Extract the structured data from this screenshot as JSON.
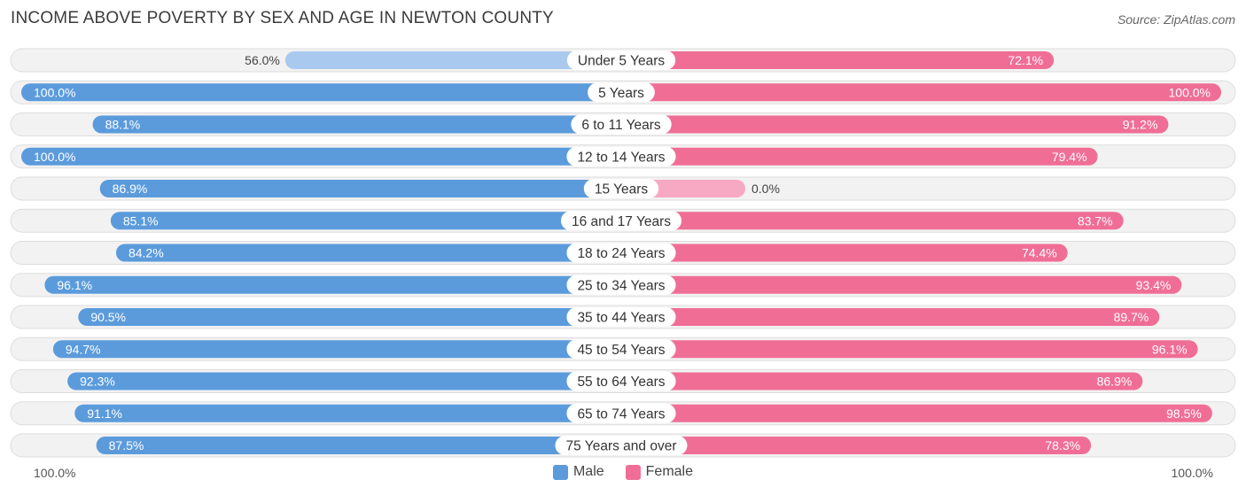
{
  "header": {
    "title": "INCOME ABOVE POVERTY BY SEX AND AGE IN NEWTON COUNTY",
    "source": "Source: ZipAtlas.com"
  },
  "legend": {
    "male_label": "Male",
    "female_label": "Female"
  },
  "axis": {
    "left_label": "100.0%",
    "right_label": "100.0%"
  },
  "colors": {
    "male_strong": "#5b9bdc",
    "male_light": "#a9c9ef",
    "female_strong": "#f06e96",
    "female_light": "#f7a9c3",
    "row_bg": "#f2f2f2",
    "row_border": "#dddddd"
  },
  "chart_data": {
    "type": "bar",
    "orientation": "horizontal-diverging",
    "title": "INCOME ABOVE POVERTY BY SEX AND AGE IN NEWTON COUNTY",
    "categories": [
      "Under 5 Years",
      "5 Years",
      "6 to 11 Years",
      "12 to 14 Years",
      "15 Years",
      "16 and 17 Years",
      "18 to 24 Years",
      "25 to 34 Years",
      "35 to 44 Years",
      "45 to 54 Years",
      "55 to 64 Years",
      "65 to 74 Years",
      "75 Years and over"
    ],
    "series": [
      {
        "name": "Male",
        "values": [
          56.0,
          100.0,
          88.1,
          100.0,
          86.9,
          85.1,
          84.2,
          96.1,
          90.5,
          94.7,
          92.3,
          91.1,
          87.5
        ],
        "labels": [
          "56.0%",
          "100.0%",
          "88.1%",
          "100.0%",
          "86.9%",
          "85.1%",
          "84.2%",
          "96.1%",
          "90.5%",
          "94.7%",
          "92.3%",
          "91.1%",
          "87.5%"
        ]
      },
      {
        "name": "Female",
        "values": [
          72.1,
          100.0,
          91.2,
          79.4,
          0.0,
          83.7,
          74.4,
          93.4,
          89.7,
          96.1,
          86.9,
          98.5,
          78.3
        ],
        "labels": [
          "72.1%",
          "100.0%",
          "91.2%",
          "79.4%",
          "0.0%",
          "83.7%",
          "74.4%",
          "93.4%",
          "89.7%",
          "96.1%",
          "86.9%",
          "98.5%",
          "78.3%"
        ]
      }
    ],
    "xlim": [
      0,
      100
    ]
  }
}
